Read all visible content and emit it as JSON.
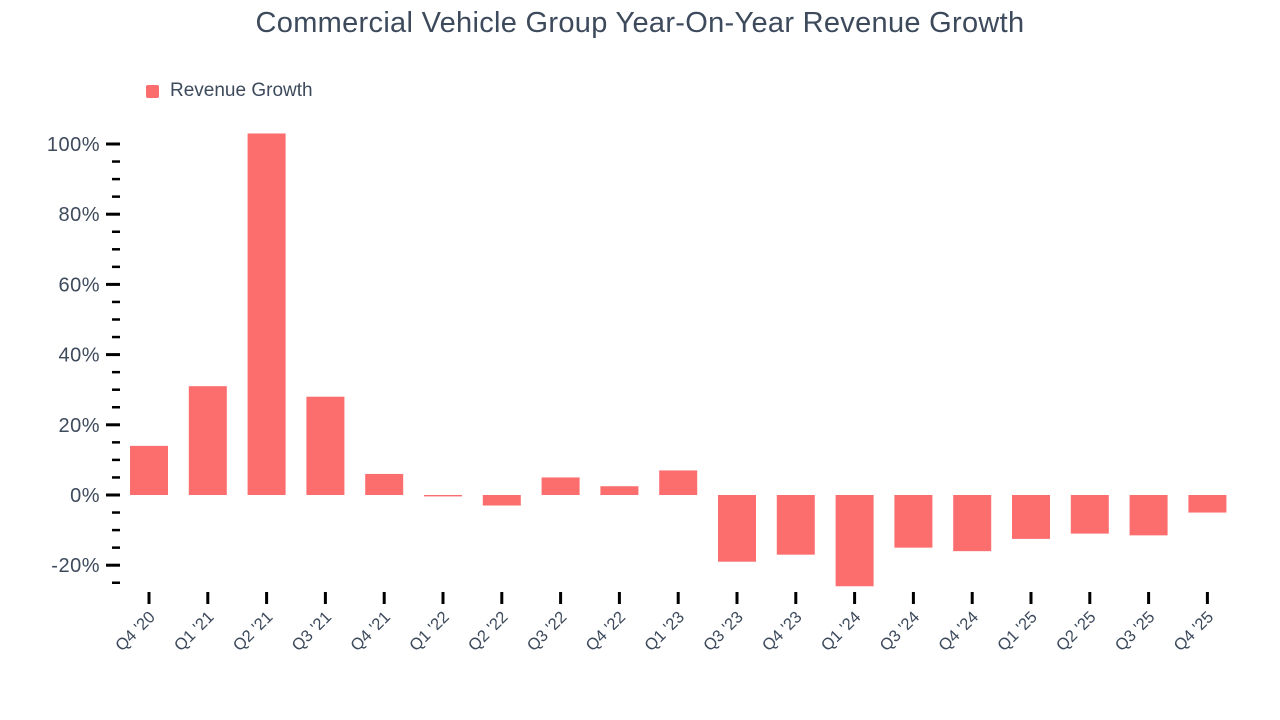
{
  "chart_data": {
    "type": "bar",
    "title": "Commercial Vehicle Group Year-On-Year Revenue Growth",
    "legend_entries": [
      "Revenue Growth"
    ],
    "legend_position": "top-left",
    "categories": [
      "Q4 '20",
      "Q1 '21",
      "Q2 '21",
      "Q3 '21",
      "Q4 '21",
      "Q1 '22",
      "Q2 '22",
      "Q3 '22",
      "Q4 '22",
      "Q1 '23",
      "Q3 '23",
      "Q4 '23",
      "Q1 '24",
      "Q3 '24",
      "Q4 '24",
      "Q1 '25",
      "Q2 '25",
      "Q3 '25",
      "Q4 '25"
    ],
    "values": [
      14,
      31,
      103,
      28,
      6,
      -0.4,
      -3,
      5,
      2.5,
      7,
      -19,
      -17,
      -26,
      -15,
      -16,
      -12.5,
      -11,
      -11.5,
      -5
    ],
    "unit": "%",
    "xlabel": "",
    "ylabel": "",
    "ylim": [
      -27,
      105
    ],
    "yticks_major": [
      100,
      80,
      60,
      40,
      20,
      0,
      -20
    ],
    "ytick_labels": [
      "100%",
      "80%",
      "60%",
      "40%",
      "20%",
      "0%",
      "-20%"
    ],
    "y_minor_tick_step": 5,
    "y_minor_tick_range": [
      95,
      -25
    ],
    "xtick_label_rotation": -45,
    "grid": false,
    "colors": {
      "bar": "#fc6d6e",
      "text": "#3d4a5c",
      "tick": "#000000",
      "background": "#ffffff"
    }
  }
}
